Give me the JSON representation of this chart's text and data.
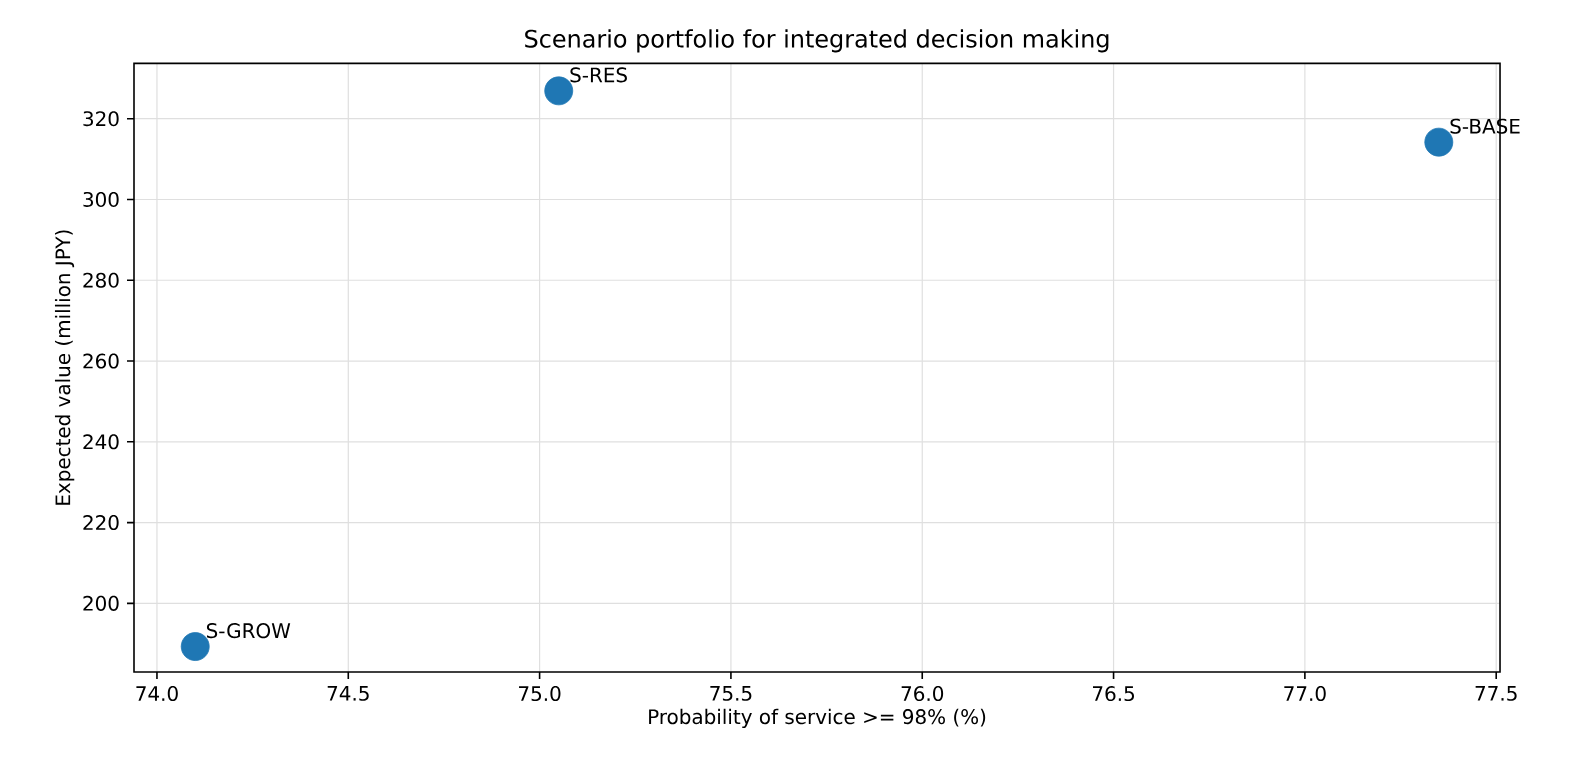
{
  "chart_data": {
    "type": "scatter",
    "title": "Scenario portfolio for integrated decision making",
    "xlabel": "Probability of service >= 98% (%)",
    "ylabel": "Expected value (million JPY)",
    "x": [
      74.1,
      75.05,
      77.35
    ],
    "series": [
      {
        "color": "#1f77b4",
        "values": [
          189.3,
          326.9,
          314.2
        ]
      }
    ],
    "annotations": [
      {
        "text": "S-GROW",
        "x": 74.1,
        "y": 189.3
      },
      {
        "text": "S-RES",
        "x": 75.05,
        "y": 326.9
      },
      {
        "text": "S-BASE",
        "x": 77.35,
        "y": 314.2
      }
    ],
    "xlim": [
      73.94,
      77.51
    ],
    "ylim": [
      183.0,
      333.7
    ],
    "xticks": [
      {
        "value": 74.0,
        "label": "74.0"
      },
      {
        "value": 74.5,
        "label": "74.5"
      },
      {
        "value": 75.0,
        "label": "75.0"
      },
      {
        "value": 75.5,
        "label": "75.5"
      },
      {
        "value": 76.0,
        "label": "76.0"
      },
      {
        "value": 76.5,
        "label": "76.5"
      },
      {
        "value": 77.0,
        "label": "77.0"
      },
      {
        "value": 77.5,
        "label": "77.5"
      }
    ],
    "yticks": [
      200,
      220,
      240,
      260,
      280,
      300,
      320
    ],
    "grid": true
  }
}
